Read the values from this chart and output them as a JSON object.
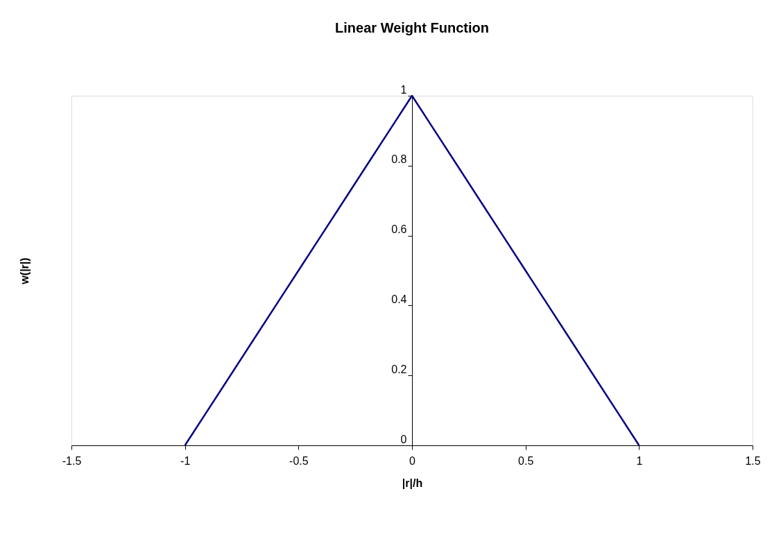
{
  "chart_data": {
    "type": "line",
    "title": "Linear Weight Function",
    "xlabel": "|r|/h",
    "ylabel": "w(|r|)",
    "x": [
      -1,
      -0.9,
      -0.8,
      -0.7,
      -0.6,
      -0.5,
      -0.4,
      -0.3,
      -0.2,
      -0.1,
      0,
      0.1,
      0.2,
      0.3,
      0.4,
      0.5,
      0.6,
      0.7,
      0.8,
      0.9,
      1
    ],
    "series": [
      {
        "color": "#000080",
        "values": [
          0,
          0.1,
          0.2,
          0.3,
          0.4,
          0.5,
          0.6,
          0.7,
          0.8,
          0.9,
          1,
          0.9,
          0.8,
          0.7,
          0.6,
          0.5,
          0.4,
          0.3,
          0.2,
          0.1,
          0
        ]
      }
    ],
    "xlim": [
      -1.5,
      1.5
    ],
    "xticks": [
      -1.5,
      -1,
      -0.5,
      0,
      0.5,
      1,
      1.5
    ],
    "ylim": [
      0,
      1
    ],
    "yticks": [
      0,
      0.2,
      0.4,
      0.6,
      0.8,
      1
    ],
    "grid": false,
    "marker": "none",
    "line_style": "solid"
  }
}
